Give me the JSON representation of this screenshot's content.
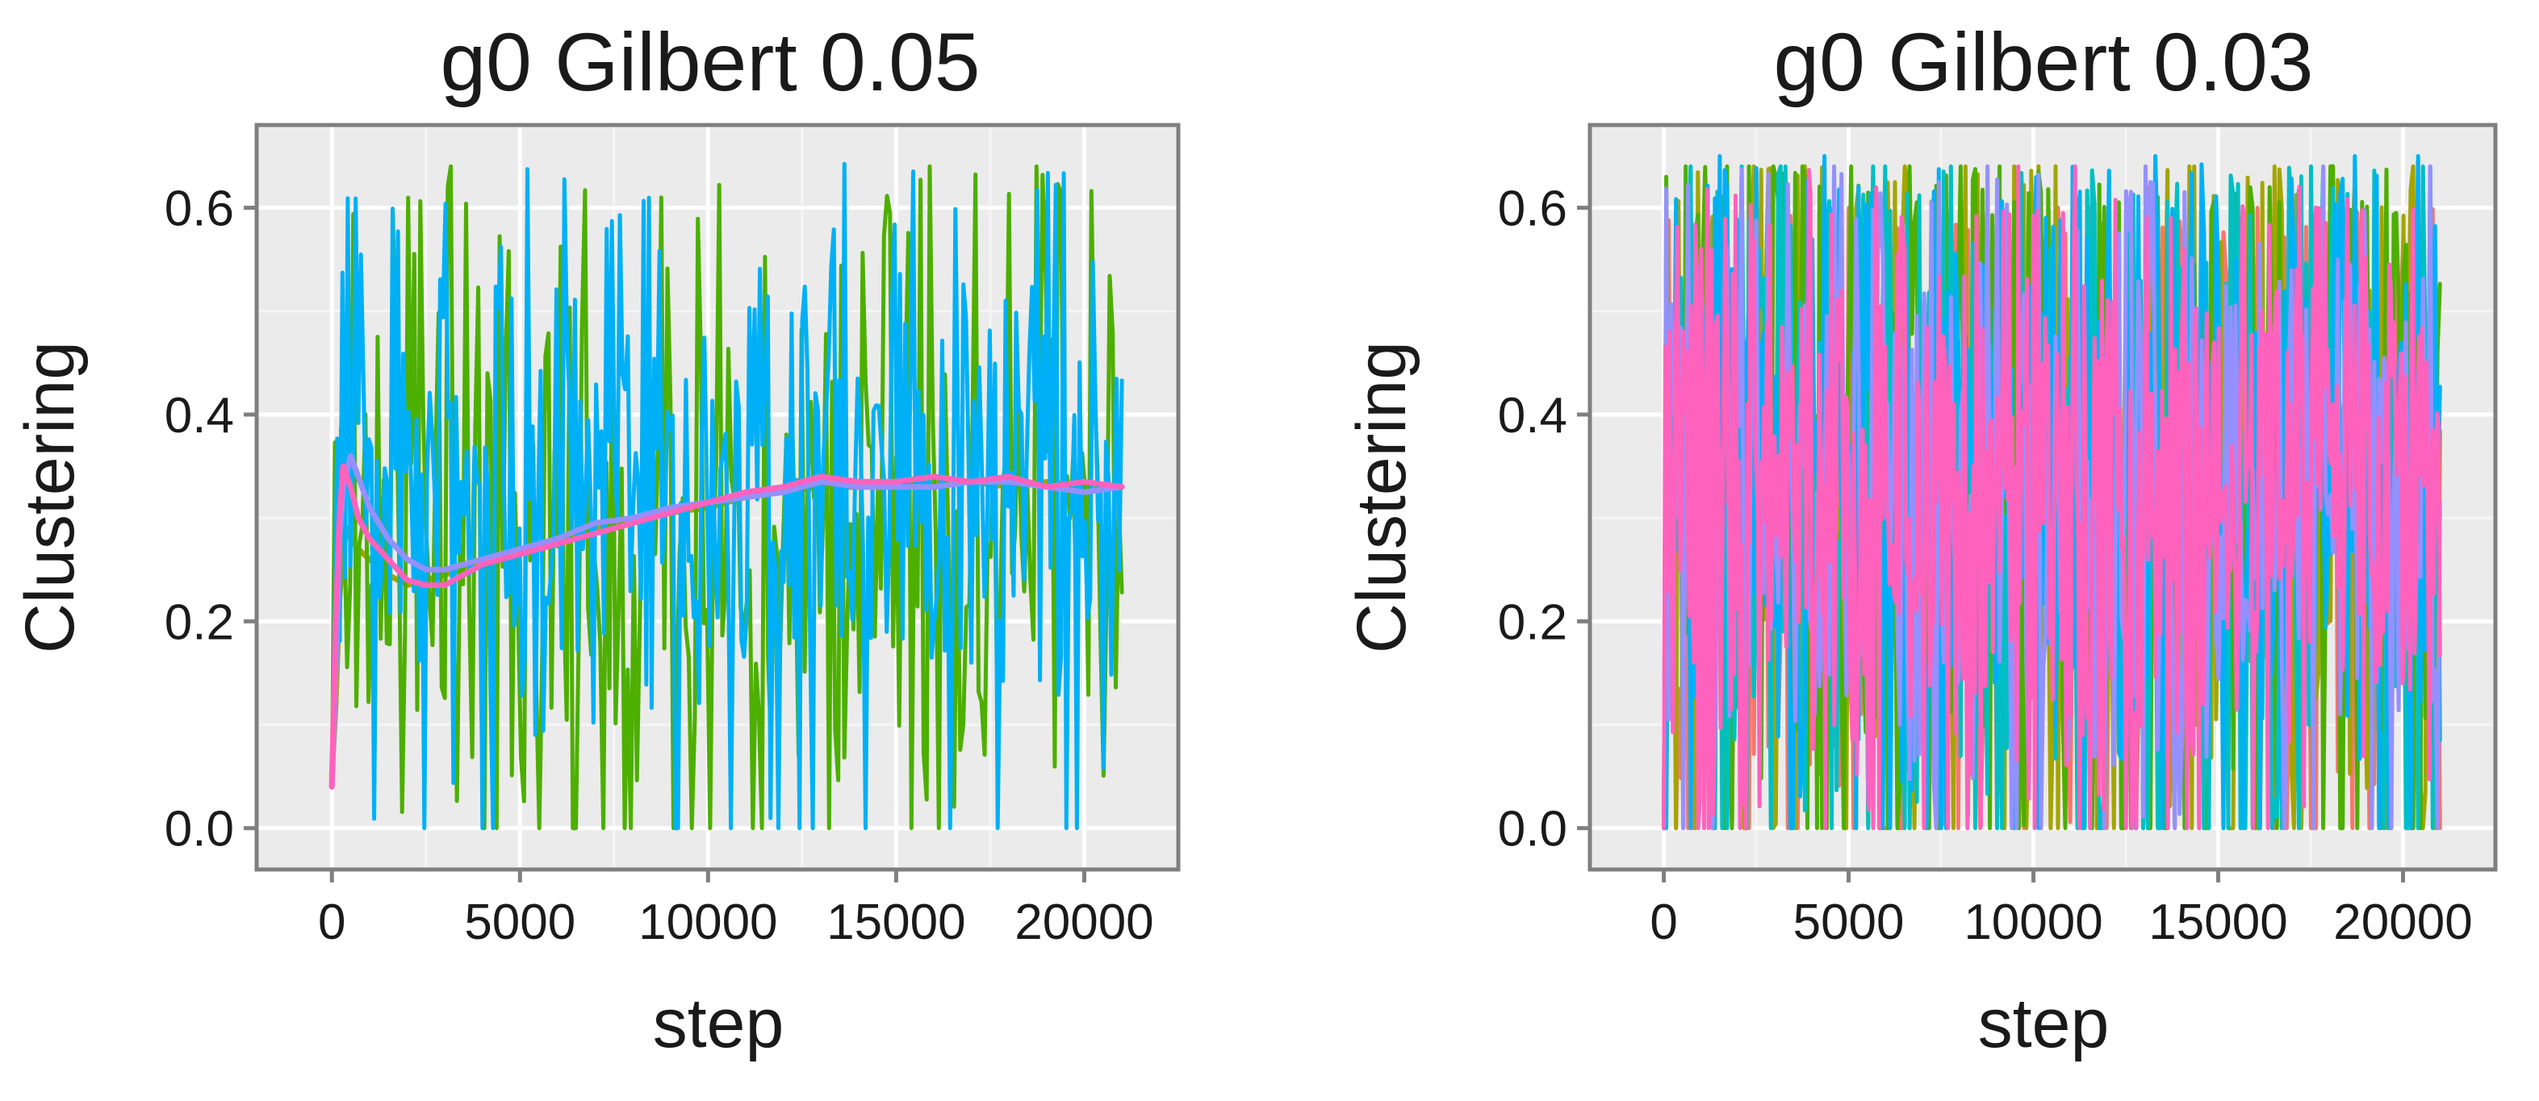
{
  "chart_data": [
    {
      "type": "line",
      "title": "g0  Gilbert 0.05",
      "xlabel": "step",
      "ylabel": "Clustering",
      "xlim": [
        -2000,
        22500
      ],
      "ylim": [
        -0.04,
        0.68
      ],
      "x_ticks": [
        0,
        5000,
        10000,
        15000,
        20000
      ],
      "x_tick_labels": [
        "0",
        "5000",
        "10000",
        "15000",
        "20000"
      ],
      "y_ticks": [
        0.0,
        0.2,
        0.4,
        0.6
      ],
      "y_tick_labels": [
        "0.0",
        "0.2",
        "0.4",
        "0.6"
      ],
      "grid": true,
      "background": "#ebebeb",
      "series": [
        {
          "name": "series-olive",
          "color": "#a3a500",
          "kind": "smooth",
          "x": [
            0,
            100,
            200,
            300,
            400,
            500,
            700,
            1000,
            1500,
            2000,
            2500,
            3000,
            3500,
            4000,
            5000,
            6000,
            7000,
            8000,
            9000,
            10000,
            11000,
            12000,
            13000,
            14000,
            15000,
            16000,
            17000,
            18000,
            19000,
            20000,
            21000
          ],
          "values": [
            0.05,
            0.12,
            0.22,
            0.27,
            0.29,
            0.28,
            0.27,
            0.26,
            0.245,
            0.235,
            0.24,
            0.245,
            0.25,
            0.255,
            0.265,
            0.275,
            0.29,
            0.3,
            0.305,
            0.31,
            0.32,
            0.325,
            0.33,
            0.33,
            0.335,
            0.335,
            0.335,
            0.33,
            0.335,
            0.33,
            0.33
          ]
        },
        {
          "name": "series-green",
          "color": "#4daf00",
          "kind": "noisy",
          "seed": 11,
          "x_range": [
            0,
            21000
          ],
          "points": 260,
          "mean": 0.3,
          "sd": 0.16,
          "min": 0.0,
          "max": 0.64,
          "zero_prob": 0.05,
          "start": 0.04
        },
        {
          "name": "series-blue",
          "color": "#00b0f6",
          "kind": "noisy",
          "seed": 23,
          "x_range": [
            0,
            21000
          ],
          "points": 300,
          "mean": 0.33,
          "sd": 0.13,
          "min": 0.0,
          "max": 0.65,
          "zero_prob": 0.05,
          "start": 0.04
        },
        {
          "name": "series-purple",
          "color": "#9590ff",
          "kind": "smooth",
          "x": [
            0,
            100,
            200,
            300,
            500,
            800,
            1000,
            1500,
            2000,
            2500,
            3000,
            3500,
            4000,
            5000,
            6000,
            7000,
            8000,
            9000,
            10000,
            11000,
            12000,
            13000,
            14000,
            15000,
            16000,
            17000,
            18000,
            19000,
            20000,
            21000
          ],
          "values": [
            0.04,
            0.15,
            0.28,
            0.33,
            0.36,
            0.33,
            0.31,
            0.28,
            0.26,
            0.25,
            0.25,
            0.255,
            0.26,
            0.27,
            0.28,
            0.295,
            0.3,
            0.31,
            0.315,
            0.32,
            0.325,
            0.335,
            0.33,
            0.33,
            0.33,
            0.335,
            0.335,
            0.33,
            0.325,
            0.33
          ]
        },
        {
          "name": "series-pink",
          "color": "#ff62bc",
          "kind": "smooth",
          "x": [
            0,
            100,
            200,
            300,
            500,
            700,
            1000,
            1500,
            2000,
            2500,
            3000,
            3500,
            4000,
            5000,
            6000,
            7000,
            8000,
            9000,
            10000,
            11000,
            12000,
            13000,
            14000,
            15000,
            16000,
            17000,
            18000,
            19000,
            20000,
            21000
          ],
          "values": [
            0.04,
            0.2,
            0.3,
            0.35,
            0.33,
            0.3,
            0.28,
            0.26,
            0.24,
            0.235,
            0.235,
            0.245,
            0.255,
            0.265,
            0.275,
            0.285,
            0.295,
            0.305,
            0.315,
            0.325,
            0.33,
            0.34,
            0.335,
            0.335,
            0.34,
            0.335,
            0.34,
            0.33,
            0.335,
            0.33
          ]
        }
      ]
    },
    {
      "type": "line",
      "title": "g0  Gilbert 0.03",
      "xlabel": "step",
      "ylabel": "Clustering",
      "xlim": [
        -2000,
        22500
      ],
      "ylim": [
        -0.04,
        0.68
      ],
      "x_ticks": [
        0,
        5000,
        10000,
        15000,
        20000
      ],
      "x_tick_labels": [
        "0",
        "5000",
        "10000",
        "15000",
        "20000"
      ],
      "y_ticks": [
        0.0,
        0.2,
        0.4,
        0.6
      ],
      "y_tick_labels": [
        "0.0",
        "0.2",
        "0.4",
        "0.6"
      ],
      "grid": true,
      "background": "#ebebeb",
      "series": [
        {
          "name": "series-red",
          "color": "#f8766d",
          "kind": "noisy",
          "seed": 101,
          "x_range": [
            0,
            21000
          ],
          "points": 320,
          "mean": 0.32,
          "sd": 0.18,
          "min": 0.0,
          "max": 0.6,
          "zero_prob": 0.12,
          "start": 0.0
        },
        {
          "name": "series-olive",
          "color": "#a3a500",
          "kind": "noisy",
          "seed": 202,
          "x_range": [
            0,
            21000
          ],
          "points": 320,
          "mean": 0.32,
          "sd": 0.18,
          "min": 0.0,
          "max": 0.64,
          "zero_prob": 0.12,
          "start": 0.0
        },
        {
          "name": "series-green",
          "color": "#4daf00",
          "kind": "noisy",
          "seed": 303,
          "x_range": [
            0,
            21000
          ],
          "points": 320,
          "mean": 0.32,
          "sd": 0.18,
          "min": 0.0,
          "max": 0.64,
          "zero_prob": 0.12,
          "start": 0.0
        },
        {
          "name": "series-teal",
          "color": "#00bfc4",
          "kind": "noisy",
          "seed": 404,
          "x_range": [
            0,
            21000
          ],
          "points": 320,
          "mean": 0.32,
          "sd": 0.17,
          "min": 0.0,
          "max": 0.64,
          "zero_prob": 0.1,
          "start": 0.0
        },
        {
          "name": "series-blue",
          "color": "#00b0f6",
          "kind": "noisy",
          "seed": 505,
          "x_range": [
            0,
            21000
          ],
          "points": 320,
          "mean": 0.33,
          "sd": 0.16,
          "min": 0.0,
          "max": 0.65,
          "zero_prob": 0.08,
          "start": 0.0
        },
        {
          "name": "series-purple",
          "color": "#9590ff",
          "kind": "noisy",
          "seed": 606,
          "x_range": [
            0,
            21000
          ],
          "points": 320,
          "mean": 0.33,
          "sd": 0.15,
          "min": 0.0,
          "max": 0.64,
          "zero_prob": 0.06,
          "start": 0.0
        },
        {
          "name": "series-pink",
          "color": "#ff62bc",
          "kind": "noisy",
          "seed": 707,
          "x_range": [
            0,
            21000
          ],
          "points": 520,
          "mean": 0.33,
          "sd": 0.14,
          "min": 0.0,
          "max": 0.64,
          "zero_prob": 0.04,
          "start": 0.0
        }
      ]
    }
  ]
}
